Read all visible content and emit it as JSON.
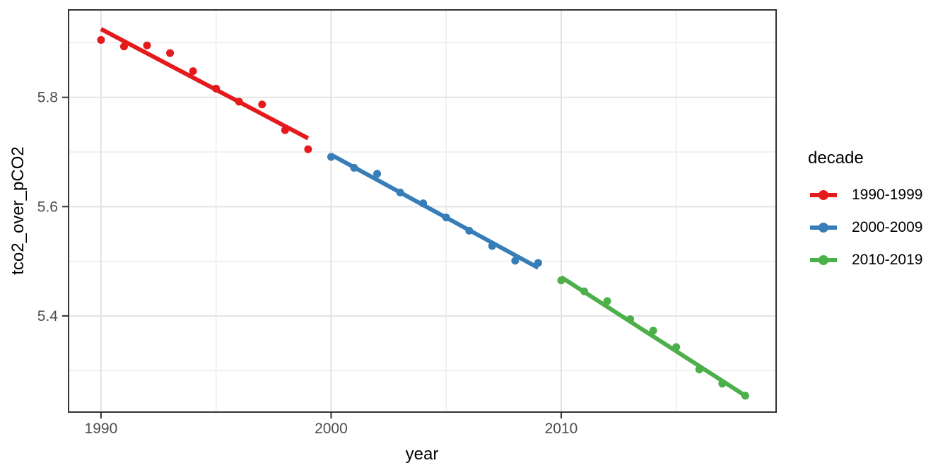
{
  "chart_data": {
    "type": "scatter",
    "title": "",
    "xlabel": "year",
    "ylabel": "tco2_over_pCO2",
    "legend_title": "decade",
    "legend_position": "right",
    "grid": true,
    "xlim": [
      1988.59,
      2019.34
    ],
    "ylim": [
      5.224,
      5.96
    ],
    "x_major_ticks": [
      {
        "value": 1990,
        "label": "1990"
      },
      {
        "value": 2000,
        "label": "2000"
      },
      {
        "value": 2010,
        "label": "2010"
      }
    ],
    "x_minor_ticks": [
      1995,
      2005,
      2015
    ],
    "y_major_ticks": [
      {
        "value": 5.4,
        "label": "5.4"
      },
      {
        "value": 5.6,
        "label": "5.6"
      },
      {
        "value": 5.8,
        "label": "5.8"
      }
    ],
    "y_minor_ticks": [
      5.3,
      5.5,
      5.7,
      5.9
    ],
    "series": [
      {
        "name": "1990-1999",
        "color": "#E41A1C",
        "years": [
          1990,
          1991,
          1992,
          1993,
          1994,
          1995,
          1996,
          1997,
          1998,
          1999
        ],
        "values": [
          5.905,
          5.893,
          5.895,
          5.881,
          5.848,
          5.816,
          5.792,
          5.787,
          5.74,
          5.705
        ],
        "trend_line": {
          "x": [
            1990,
            1999
          ],
          "y": [
            5.925,
            5.725
          ]
        }
      },
      {
        "name": "2000-2009",
        "color": "#377EB8",
        "years": [
          2000,
          2001,
          2002,
          2003,
          2004,
          2005,
          2006,
          2007,
          2008,
          2009
        ],
        "values": [
          5.691,
          5.671,
          5.66,
          5.626,
          5.606,
          5.58,
          5.556,
          5.528,
          5.501,
          5.497
        ],
        "trend_line": {
          "x": [
            2000,
            2009
          ],
          "y": [
            5.695,
            5.488
          ]
        }
      },
      {
        "name": "2010-2019",
        "color": "#4DAF4A",
        "years": [
          2010,
          2011,
          2012,
          2013,
          2014,
          2015,
          2016,
          2017,
          2018
        ],
        "values": [
          5.465,
          5.445,
          5.427,
          5.394,
          5.373,
          5.343,
          5.302,
          5.276,
          5.254
        ],
        "trend_line": {
          "x": [
            2010,
            2018
          ],
          "y": [
            5.471,
            5.254
          ]
        }
      }
    ]
  },
  "style": {
    "background_color": "#FFFFFF",
    "panel_border_color": "#333333",
    "grid_major_color": "#E3E3E3",
    "grid_minor_color": "#ECECEC",
    "tick_mark_color": "#333333",
    "tick_label_color": "#4D4D4D",
    "axis_title_color": "#000000",
    "legend_text_color": "#000000"
  }
}
